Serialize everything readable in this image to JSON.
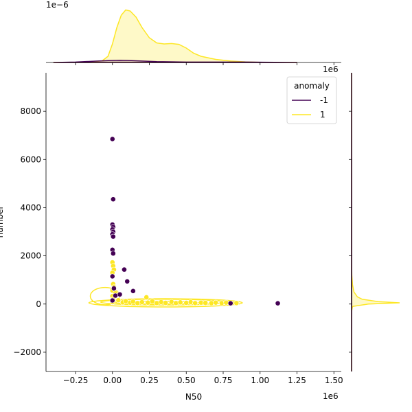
{
  "chart_data": {
    "type": "scatter",
    "xlabel": "N50",
    "ylabel": "number",
    "xlim": [
      -0.45,
      1.55
    ],
    "ylim": [
      -2800,
      9600
    ],
    "x_offset_text": "1e6",
    "x_ticks": [
      -0.25,
      0.0,
      0.25,
      0.5,
      0.75,
      1.0,
      1.25,
      1.5
    ],
    "x_tick_labels": [
      "−0.25",
      "0.00",
      "0.25",
      "0.50",
      "0.75",
      "1.00",
      "1.25",
      "1.50"
    ],
    "y_ticks": [
      -2000,
      0,
      2000,
      4000,
      6000,
      8000
    ],
    "y_tick_labels": [
      "−2000",
      "0",
      "2000",
      "4000",
      "6000",
      "8000"
    ],
    "top_marginal_offset_text": "1e−6",
    "right_marginal_offset_text": "1e6",
    "legend": {
      "title": "anomaly",
      "placement": "top-right",
      "entries": [
        {
          "label": "-1",
          "color": "#440154"
        },
        {
          "label": "1",
          "color": "#fde725"
        }
      ]
    },
    "series": [
      {
        "name": "-1",
        "color": "#440154",
        "points": [
          [
            0.0,
            6850
          ],
          [
            0.005,
            4350
          ],
          [
            0.0,
            3300
          ],
          [
            0.005,
            3200
          ],
          [
            0.0,
            3100
          ],
          [
            0.005,
            3000
          ],
          [
            0.0,
            2900
          ],
          [
            0.005,
            2800
          ],
          [
            0.0,
            2250
          ],
          [
            0.005,
            2100
          ],
          [
            0.0,
            1150
          ],
          [
            0.08,
            1430
          ],
          [
            0.1,
            940
          ],
          [
            0.14,
            540
          ],
          [
            0.05,
            400
          ],
          [
            0.01,
            650
          ],
          [
            0.02,
            350
          ],
          [
            0.0,
            150
          ],
          [
            0.8,
            30
          ],
          [
            1.12,
            30
          ]
        ]
      },
      {
        "name": "1",
        "color": "#fde725",
        "points": [
          [
            0.0,
            1730
          ],
          [
            0.005,
            1580
          ],
          [
            0.01,
            1430
          ],
          [
            0.0,
            1300
          ],
          [
            0.005,
            830
          ],
          [
            0.01,
            700
          ],
          [
            0.0,
            560
          ],
          [
            0.02,
            450
          ],
          [
            0.0,
            330
          ],
          [
            0.005,
            200
          ],
          [
            0.0,
            80
          ],
          [
            0.04,
            160
          ],
          [
            0.07,
            70
          ],
          [
            0.09,
            120
          ],
          [
            0.12,
            60
          ],
          [
            0.14,
            100
          ],
          [
            0.17,
            40
          ],
          [
            0.2,
            80
          ],
          [
            0.23,
            280
          ],
          [
            0.24,
            60
          ],
          [
            0.27,
            120
          ],
          [
            0.3,
            40
          ],
          [
            0.33,
            80
          ],
          [
            0.36,
            50
          ],
          [
            0.4,
            90
          ],
          [
            0.43,
            40
          ],
          [
            0.46,
            70
          ],
          [
            0.5,
            50
          ],
          [
            0.53,
            80
          ],
          [
            0.56,
            40
          ],
          [
            0.6,
            60
          ],
          [
            0.63,
            50
          ],
          [
            0.67,
            40
          ],
          [
            0.7,
            60
          ],
          [
            0.74,
            40
          ],
          [
            0.77,
            60
          ],
          [
            0.81,
            30
          ],
          [
            0.84,
            40
          ]
        ]
      }
    ],
    "kde_contours": [
      {
        "series": "1",
        "cx": 0.36,
        "cy": 50,
        "rx": 0.52,
        "ry": 170
      },
      {
        "series": "1",
        "cx": 0.34,
        "cy": 80,
        "rx": 0.42,
        "ry": 120
      },
      {
        "series": "1",
        "cx": -0.05,
        "cy": 330,
        "rx": 0.1,
        "ry": 360
      },
      {
        "series": "1",
        "cx": 0.3,
        "cy": 60,
        "rx": 0.28,
        "ry": 60
      }
    ],
    "marginal_top": {
      "ylim": [
        0,
        2.6
      ],
      "series": [
        {
          "name": "1",
          "color": "#fde725",
          "x": [
            -0.4,
            -0.25,
            -0.15,
            -0.07,
            -0.03,
            0.0,
            0.03,
            0.06,
            0.09,
            0.12,
            0.16,
            0.2,
            0.25,
            0.3,
            0.35,
            0.4,
            0.45,
            0.5,
            0.55,
            0.6,
            0.7,
            0.8,
            0.9,
            1.0,
            1.1,
            1.25
          ],
          "y": [
            0.0,
            0.01,
            0.02,
            0.08,
            0.3,
            0.9,
            1.7,
            2.3,
            2.55,
            2.5,
            2.2,
            1.7,
            1.2,
            0.95,
            0.9,
            0.92,
            0.88,
            0.7,
            0.45,
            0.3,
            0.15,
            0.07,
            0.03,
            0.01,
            0.0,
            0.0
          ]
        },
        {
          "name": "-1",
          "color": "#440154",
          "x": [
            -0.4,
            -0.25,
            -0.1,
            0.0,
            0.05,
            0.1,
            0.2,
            0.3,
            0.5,
            0.7,
            0.9,
            1.1,
            1.25
          ],
          "y": [
            0.0,
            0.02,
            0.07,
            0.1,
            0.11,
            0.1,
            0.07,
            0.04,
            0.02,
            0.02,
            0.02,
            0.01,
            0.0
          ]
        }
      ]
    },
    "marginal_right": {
      "series": [
        {
          "name": "1",
          "color": "#fde725",
          "y": [
            -2800,
            -300,
            -100,
            0,
            50,
            100,
            200,
            300,
            500,
            800,
            1200,
            1800,
            9600
          ],
          "d": [
            0.0,
            0.0,
            0.02,
            0.35,
            1.0,
            0.55,
            0.22,
            0.12,
            0.05,
            0.02,
            0.005,
            0.0,
            0.0
          ]
        },
        {
          "name": "-1",
          "color": "#440154",
          "y": [
            -2800,
            0,
            2000,
            4000,
            7000,
            9600
          ],
          "d": [
            0.0,
            0.002,
            0.002,
            0.002,
            0.001,
            0.0
          ]
        }
      ]
    }
  }
}
